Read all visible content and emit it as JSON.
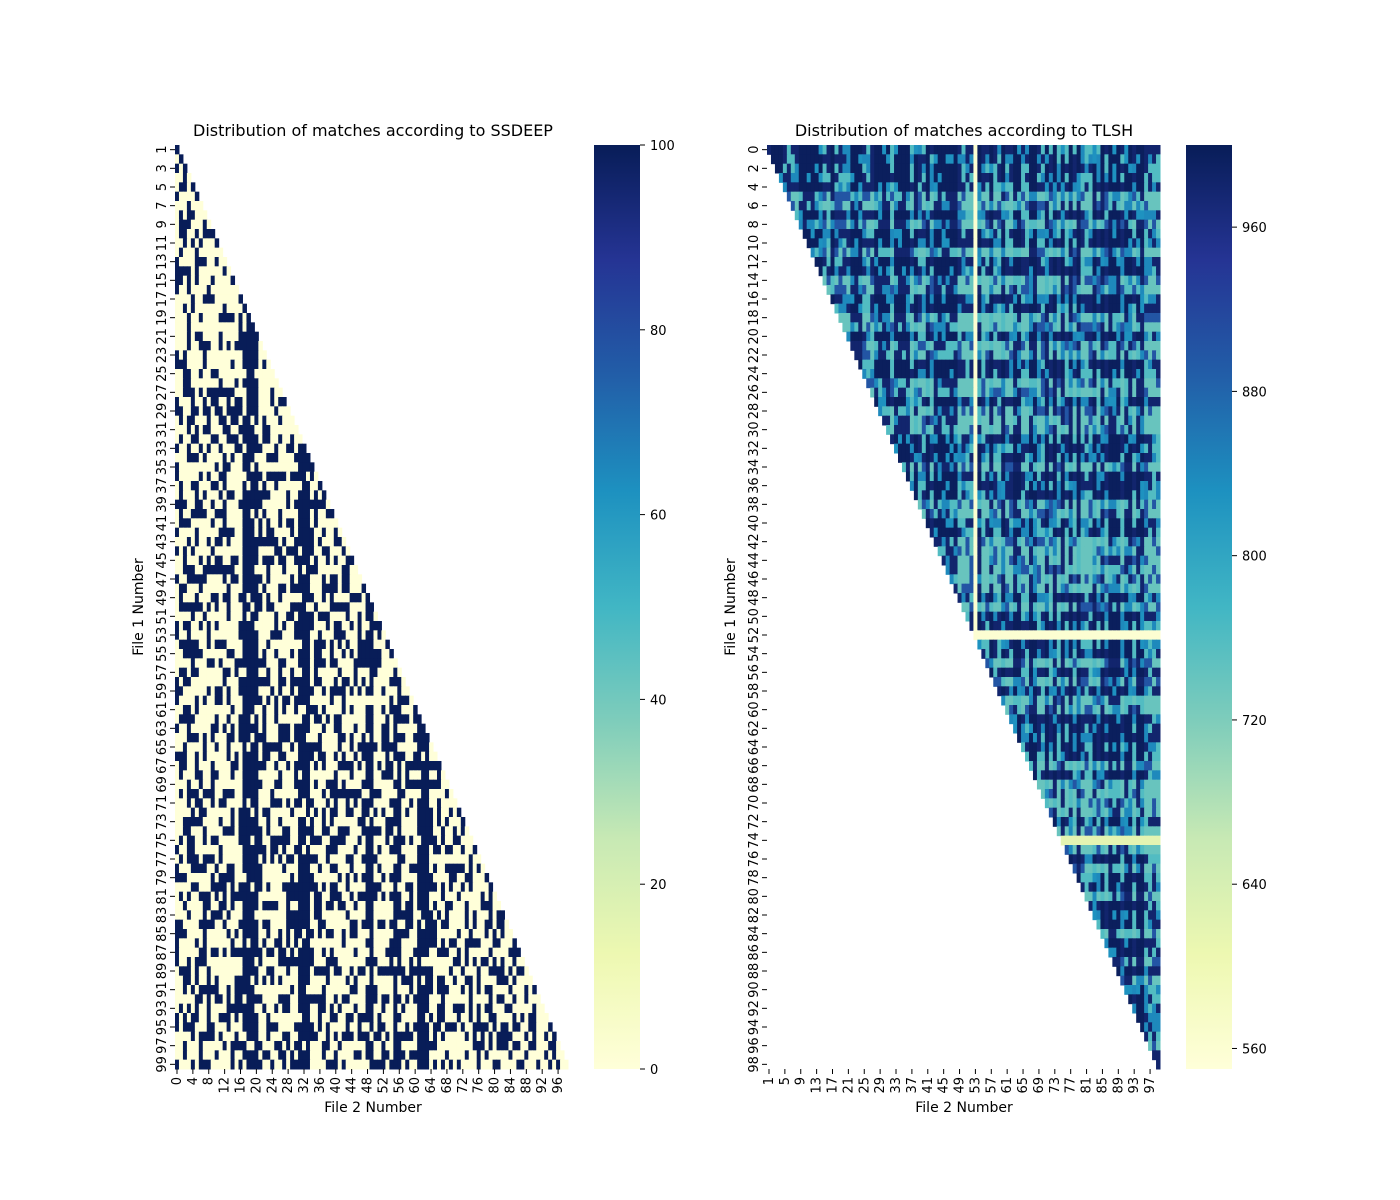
{
  "chart_data": [
    {
      "type": "heatmap",
      "title": "Distribution of matches according to SSDEEP",
      "xlabel": "File 2 Number",
      "ylabel": "File 1 Number",
      "colormap": "YlGnBu",
      "mask": "upper triangle (j > i) blank",
      "rows_first": 1,
      "rows_last": 99,
      "cols_first": 0,
      "cols_last": 98,
      "ytick_labels": [
        "1",
        "3",
        "5",
        "7",
        "9",
        "11",
        "13",
        "15",
        "17",
        "19",
        "21",
        "23",
        "25",
        "27",
        "29",
        "31",
        "33",
        "35",
        "37",
        "39",
        "41",
        "43",
        "45",
        "47",
        "49",
        "51",
        "53",
        "55",
        "57",
        "59",
        "61",
        "63",
        "65",
        "67",
        "69",
        "71",
        "73",
        "75",
        "77",
        "79",
        "81",
        "83",
        "85",
        "87",
        "89",
        "91",
        "93",
        "95",
        "97",
        "99"
      ],
      "xtick_labels": [
        "0",
        "4",
        "8",
        "12",
        "16",
        "20",
        "24",
        "28",
        "32",
        "36",
        "40",
        "44",
        "48",
        "52",
        "56",
        "60",
        "64",
        "68",
        "72",
        "76",
        "80",
        "84",
        "88",
        "92",
        "96"
      ],
      "value_range": [
        0,
        100
      ],
      "colorbar_ticks": [
        "0",
        "20",
        "40",
        "60",
        "80",
        "100"
      ],
      "cell_values": "binary: 0 (no match) or 100 (match); columns 17-20, 31-33, 48-49, 55-56, 61-63 predominantly 100 in most rows"
    },
    {
      "type": "heatmap",
      "title": "Distribution of matches according to TLSH",
      "xlabel": "File 2 Number",
      "ylabel": "File 1 Number",
      "colormap": "YlGnBu",
      "mask": "lower triangle (j <= i) blank",
      "rows_first": 0,
      "rows_last": 98,
      "cols_first": 1,
      "cols_last": 99,
      "ytick_labels": [
        "0",
        "2",
        "4",
        "6",
        "8",
        "10",
        "12",
        "14",
        "16",
        "18",
        "20",
        "22",
        "24",
        "26",
        "28",
        "30",
        "32",
        "34",
        "36",
        "38",
        "40",
        "42",
        "44",
        "46",
        "48",
        "50",
        "52",
        "54",
        "56",
        "58",
        "60",
        "62",
        "64",
        "66",
        "68",
        "70",
        "72",
        "74",
        "76",
        "78",
        "80",
        "82",
        "84",
        "86",
        "88",
        "90",
        "92",
        "94",
        "96",
        "98"
      ],
      "xtick_labels": [
        "1",
        "5",
        "9",
        "13",
        "17",
        "21",
        "25",
        "29",
        "33",
        "37",
        "41",
        "45",
        "49",
        "53",
        "57",
        "61",
        "65",
        "69",
        "73",
        "77",
        "81",
        "85",
        "89",
        "93",
        "97"
      ],
      "value_range": [
        550,
        1000
      ],
      "colorbar_ticks": [
        "560",
        "640",
        "720",
        "800",
        "880",
        "960"
      ],
      "cell_values": "mostly 700-1000; row 52 and column 53 near 560; row 74 near 620"
    }
  ]
}
